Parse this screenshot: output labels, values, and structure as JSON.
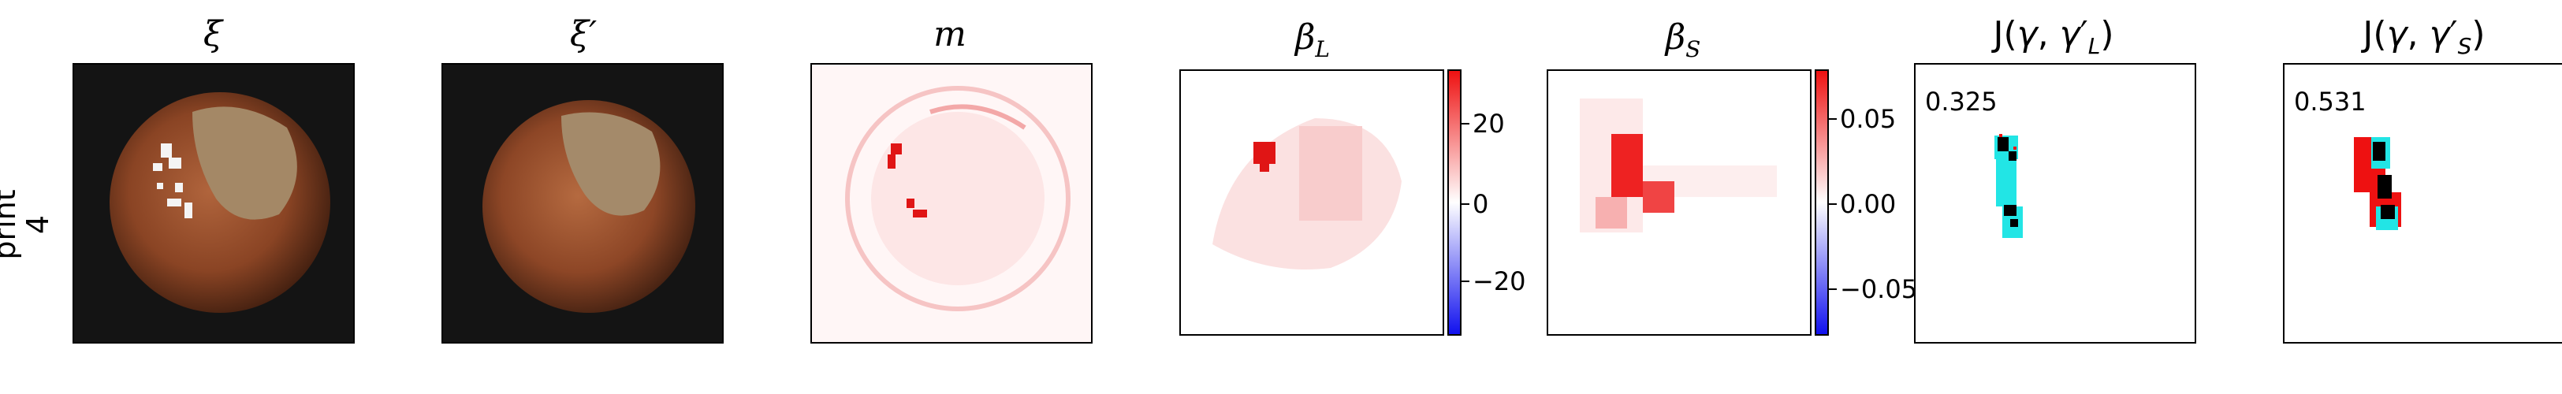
{
  "row_label": "print\n4",
  "panels": [
    {
      "title": "ξ"
    },
    {
      "title": "ξ′"
    },
    {
      "title": "m"
    },
    {
      "title": "βL"
    },
    {
      "title": "βS"
    },
    {
      "title": "J(γ, γ′L)",
      "score": "0.325"
    },
    {
      "title": "J(γ, γ′S)",
      "score": "0.531"
    }
  ],
  "colorbar_L": {
    "ticks": [
      "20",
      "0",
      "−20"
    ]
  },
  "colorbar_S": {
    "ticks": [
      "0.05",
      "0.00",
      "−0.05"
    ]
  },
  "colors": {
    "red": "#ee1111",
    "blue": "#1111ee",
    "cyan": "#22e5e5",
    "black": "#000000"
  }
}
